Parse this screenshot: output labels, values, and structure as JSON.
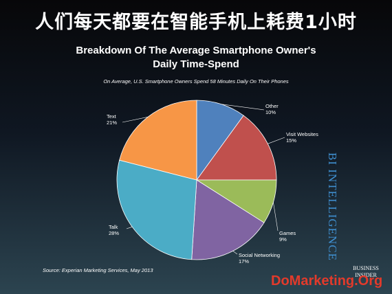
{
  "headline": "人们每天都要在智能手机上耗费1小时",
  "chart_data": {
    "type": "pie",
    "title_line1": "Breakdown Of The Average Smartphone Owner's",
    "title_line2": "Daily Time-Spend",
    "subtitle": "On Average, U.S. Smartphone Owners Spend 58 Minutes Daily On Their Phones",
    "source": "Source: Experian Marketing Services, May 2013",
    "slices": [
      {
        "name": "Other",
        "value": 10,
        "value_label": "10%",
        "color": "#4f81bd"
      },
      {
        "name": "Visit Websites",
        "value": 15,
        "value_label": "15%",
        "color": "#c0504d"
      },
      {
        "name": "Games",
        "value": 9,
        "value_label": "9%",
        "color": "#9bbb59"
      },
      {
        "name": "Social Networking",
        "value": 17,
        "value_label": "17%",
        "color": "#8064a2"
      },
      {
        "name": "Talk",
        "value": 28,
        "value_label": "28%",
        "color": "#4bacc6"
      },
      {
        "name": "Text",
        "value": 21,
        "value_label": "21%",
        "color": "#f79646"
      }
    ],
    "start": "12 o'clock",
    "direction": "clockwise"
  },
  "branding": {
    "bi_intelligence": "BI INTELLIGENCE",
    "logo_line1": "BUSINESS",
    "logo_line2": "INSIDER",
    "watermark": "DoMarketing.Org"
  }
}
